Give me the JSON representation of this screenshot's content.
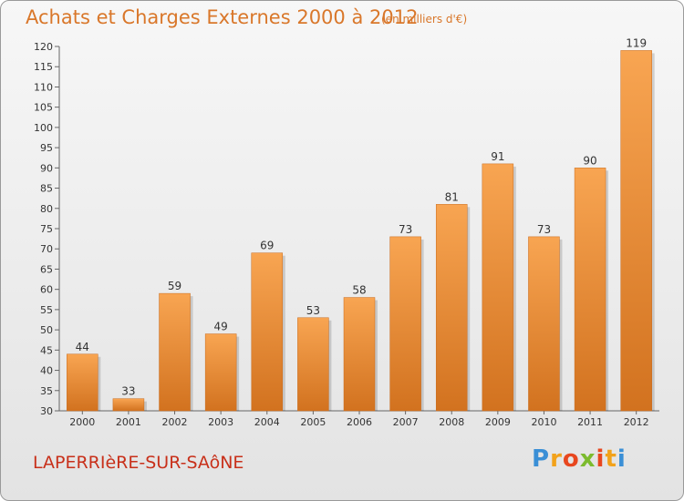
{
  "header": {
    "title": "Achats et Charges Externes 2000 à 2012",
    "unit": "(en milliers d'€)"
  },
  "footer": {
    "place": "LAPERRIèRE-SUR-SAôNE",
    "brand": "Proxiti"
  },
  "colors": {
    "bar_light": "#f8a552",
    "bar_dark": "#d2721f",
    "text_orange": "#d9772a",
    "place_red": "#c8301a"
  },
  "chart_data": {
    "type": "bar",
    "title": "Achats et Charges Externes 2000 à 2012",
    "subtitle": "(en milliers d'€)",
    "categories": [
      "2000",
      "2001",
      "2002",
      "2003",
      "2004",
      "2005",
      "2006",
      "2007",
      "2008",
      "2009",
      "2010",
      "2011",
      "2012"
    ],
    "values": [
      44,
      33,
      59,
      49,
      69,
      53,
      58,
      73,
      81,
      91,
      73,
      90,
      119
    ],
    "ylim": [
      30,
      120
    ],
    "yticks": [
      30,
      35,
      40,
      45,
      50,
      55,
      60,
      65,
      70,
      75,
      80,
      85,
      90,
      95,
      100,
      105,
      110,
      115,
      120
    ],
    "grid": false,
    "legend": "none"
  }
}
